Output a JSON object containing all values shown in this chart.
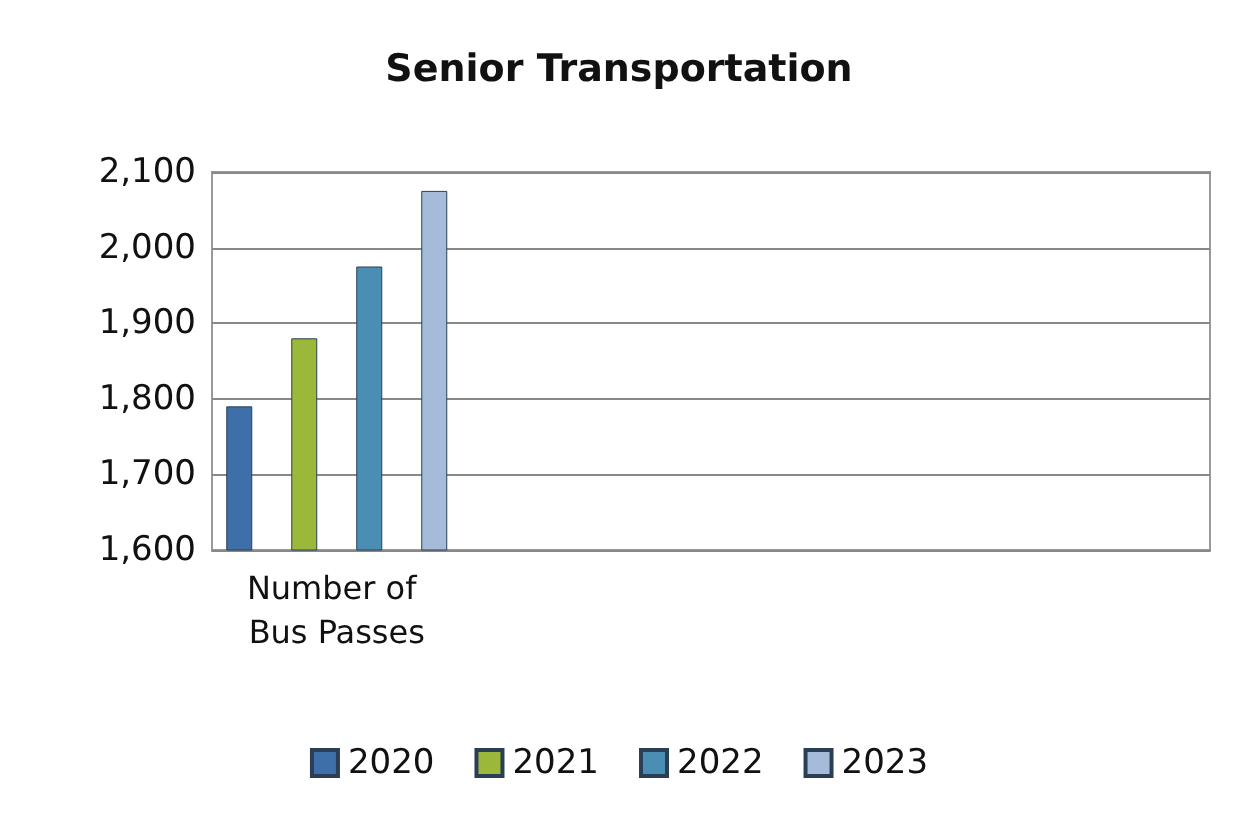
{
  "chart_data": {
    "type": "bar",
    "title": "Senior Transportation",
    "categories": [
      "Number of Bus Passes",
      null,
      null,
      null
    ],
    "series": [
      {
        "name": "2020",
        "color": "#3f6fa8",
        "values": [
          1790,
          null,
          null,
          null
        ]
      },
      {
        "name": "2021",
        "color": "#9bb83a",
        "values": [
          1880,
          null,
          null,
          null
        ]
      },
      {
        "name": "2022",
        "color": "#4a8fb3",
        "values": [
          1975,
          null,
          null,
          null
        ]
      },
      {
        "name": "2023",
        "color": "#a4bcd9",
        "values": [
          2075,
          null,
          null,
          null
        ]
      }
    ],
    "ylim": [
      1600,
      2100
    ],
    "yticks": [
      {
        "value": 1600,
        "label": "1,600"
      },
      {
        "value": 1700,
        "label": "1,700"
      },
      {
        "value": 1800,
        "label": "1,800"
      },
      {
        "value": 1900,
        "label": "1,900"
      },
      {
        "value": 2000,
        "label": "2,000"
      },
      {
        "value": 2100,
        "label": "2,100"
      }
    ],
    "grid": "y",
    "legend": "bottom"
  }
}
